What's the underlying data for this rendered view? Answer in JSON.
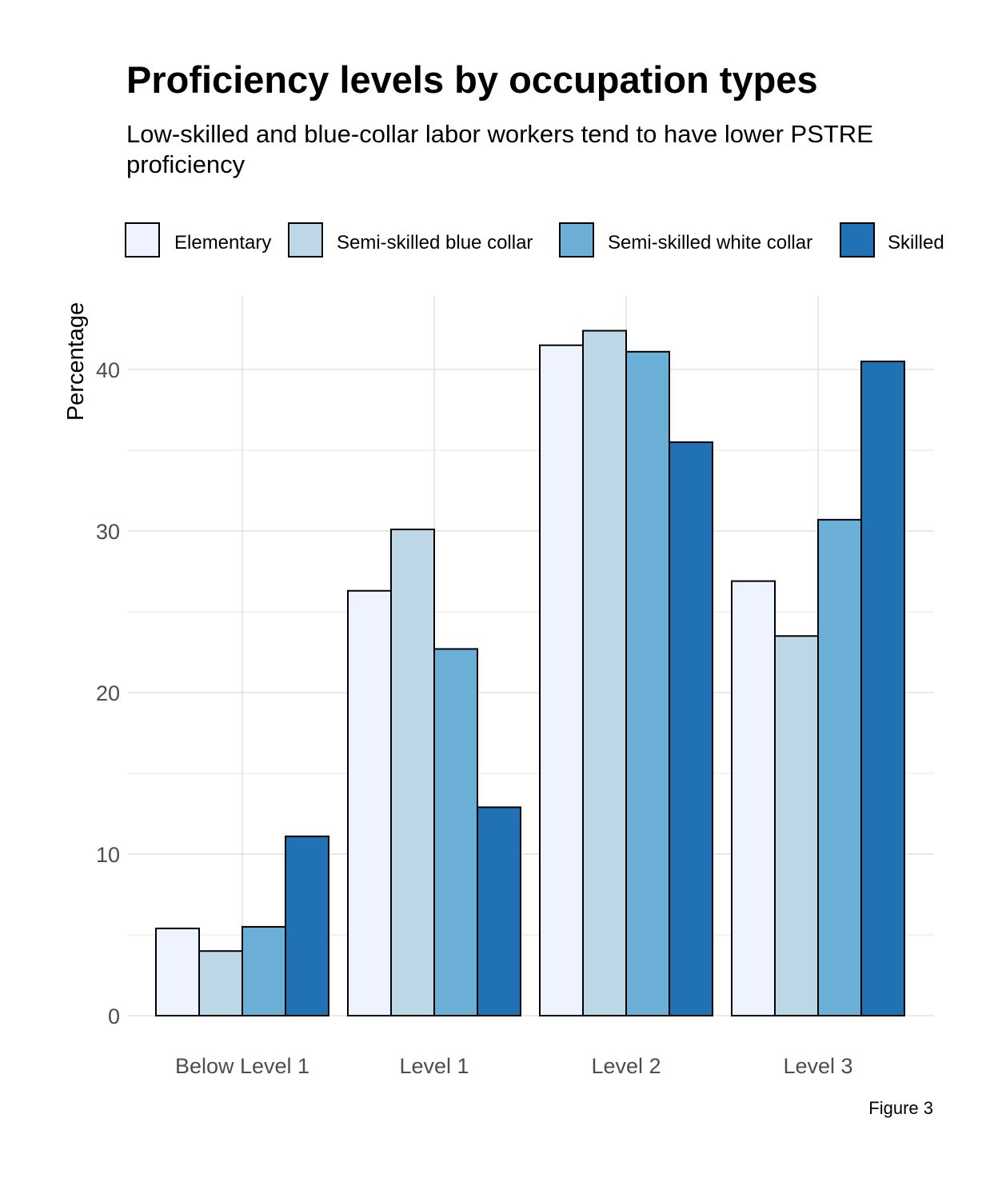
{
  "chart_data": {
    "type": "bar",
    "title": "Proficiency levels by occupation types",
    "subtitle_lines": [
      "Low-skilled and blue-collar labor workers tend to have lower PSTRE",
      "proficiency"
    ],
    "caption": "Figure 3",
    "xlabel": "",
    "ylabel": "Percentage",
    "categories": [
      "Below Level 1",
      "Level 1",
      "Level 2",
      "Level 3"
    ],
    "series": [
      {
        "name": "Elementary",
        "color": "#eff3ff",
        "values": [
          5.4,
          26.3,
          41.5,
          26.9
        ]
      },
      {
        "name": "Semi-skilled blue collar",
        "color": "#bdd7e7",
        "values": [
          4.0,
          30.1,
          42.4,
          23.5
        ]
      },
      {
        "name": "Semi-skilled white collar",
        "color": "#6baed6",
        "values": [
          5.5,
          22.7,
          41.1,
          30.7
        ]
      },
      {
        "name": "Skilled",
        "color": "#2171b5",
        "values": [
          11.1,
          12.9,
          35.5,
          40.5
        ]
      }
    ],
    "ylim": [
      0,
      45
    ],
    "yticks": [
      0,
      10,
      20,
      30,
      40
    ],
    "grid": true,
    "legend_position": "top",
    "bar_outline_color": "#000000"
  }
}
